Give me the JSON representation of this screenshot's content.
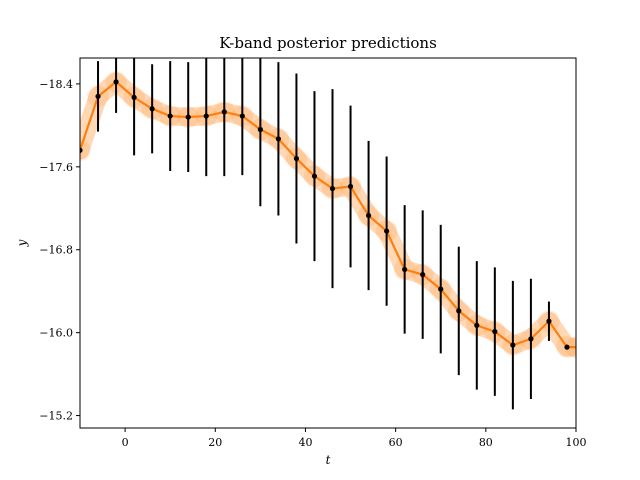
{
  "chart_data": {
    "type": "line",
    "title": "K-band posterior predictions",
    "xlabel": "t",
    "ylabel": "y",
    "xlim": [
      -10,
      100
    ],
    "ylim": [
      -15.08,
      -18.65
    ],
    "y_axis_inverted": true,
    "x_ticks": [
      0,
      20,
      40,
      60,
      80,
      100
    ],
    "x_tick_labels": [
      "0",
      "20",
      "40",
      "60",
      "80",
      "100"
    ],
    "y_ticks": [
      -18.4,
      -17.6,
      -16.8,
      -16.0,
      -15.2
    ],
    "y_tick_labels": [
      "−18.4",
      "−17.6",
      "−16.8",
      "−16.0",
      "−15.2"
    ],
    "grid": false,
    "legend": null,
    "colors": {
      "prediction": "#ff7f0e",
      "band": "#ff7f0e",
      "points": "#000000"
    },
    "prediction": {
      "x": [
        -10,
        -6,
        -2,
        2,
        6,
        10,
        14,
        18,
        22,
        26,
        30,
        34,
        38,
        42,
        46,
        50,
        54,
        58,
        62,
        66,
        70,
        74,
        78,
        82,
        86,
        90,
        94,
        98,
        100
      ],
      "y": [
        -17.76,
        -18.28,
        -18.42,
        -18.27,
        -18.16,
        -18.09,
        -18.08,
        -18.09,
        -18.13,
        -18.09,
        -17.96,
        -17.87,
        -17.68,
        -17.51,
        -17.39,
        -17.41,
        -17.13,
        -16.98,
        -16.61,
        -16.56,
        -16.42,
        -16.21,
        -16.07,
        -16.01,
        -15.88,
        -15.94,
        -16.11,
        -15.86,
        -15.86
      ],
      "band_half_width": 0.09
    },
    "observations": {
      "x": [
        -10,
        -6,
        -2,
        2,
        6,
        10,
        14,
        18,
        22,
        26,
        30,
        34,
        38,
        42,
        46,
        50,
        54,
        58,
        62,
        66,
        70,
        74,
        78,
        82,
        86,
        90,
        94,
        98
      ],
      "y": [
        -17.76,
        -18.28,
        -18.42,
        -18.27,
        -18.16,
        -18.09,
        -18.08,
        -18.09,
        -18.13,
        -18.09,
        -17.96,
        -17.87,
        -17.68,
        -17.51,
        -17.39,
        -17.41,
        -17.13,
        -16.98,
        -16.61,
        -16.56,
        -16.42,
        -16.21,
        -16.07,
        -16.01,
        -15.88,
        -15.94,
        -16.11,
        -15.86
      ],
      "yerr": [
        0.0,
        0.34,
        0.3,
        0.56,
        0.43,
        0.53,
        0.53,
        0.58,
        0.62,
        0.57,
        0.74,
        0.74,
        0.82,
        0.82,
        0.96,
        0.78,
        0.72,
        0.72,
        0.62,
        0.62,
        0.62,
        0.62,
        0.62,
        0.62,
        0.62,
        0.58,
        0.19,
        0.0
      ]
    }
  }
}
